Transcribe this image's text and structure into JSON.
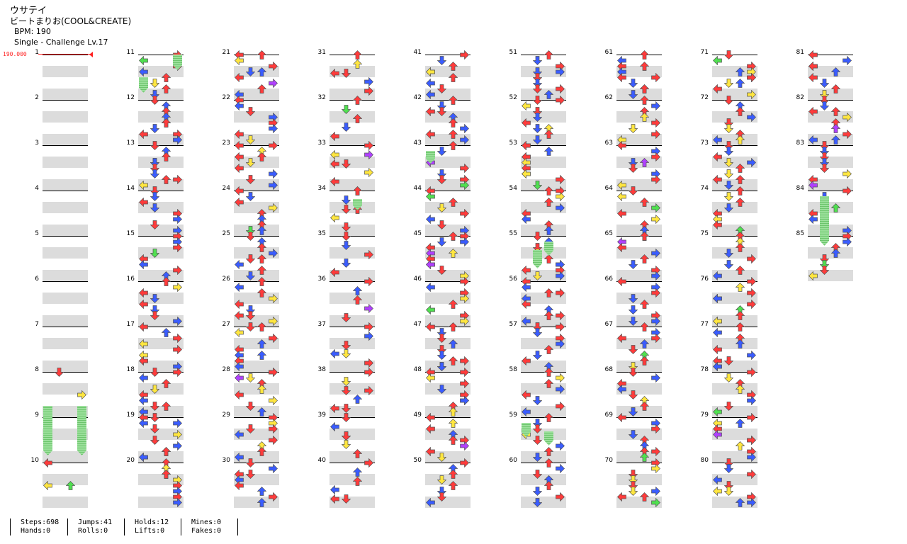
{
  "song": {
    "title": "ウサテイ",
    "artist": "ビートまりお(COOL&CREATE)",
    "bpm_text": "BPM: 190",
    "difficulty_text": "Single - Challenge  Lv.17"
  },
  "bpm_marker": "190.000",
  "measure_numbers": [
    "1",
    "2",
    "3",
    "4",
    "5",
    "6",
    "7",
    "8",
    "9",
    "10",
    "11",
    "12",
    "13",
    "14",
    "15",
    "16",
    "17",
    "18",
    "19",
    "20",
    "21",
    "22",
    "23",
    "24",
    "25",
    "26",
    "27",
    "28",
    "29",
    "30",
    "31",
    "32",
    "33",
    "34",
    "35",
    "36",
    "37",
    "38",
    "39",
    "40",
    "41",
    "42",
    "43",
    "44",
    "45",
    "46",
    "47",
    "48",
    "49",
    "50",
    "51",
    "52",
    "53",
    "54",
    "55",
    "56",
    "57",
    "58",
    "59",
    "60",
    "61",
    "62",
    "63",
    "64",
    "65",
    "66",
    "67",
    "68",
    "69",
    "70",
    "71",
    "72",
    "73",
    "74",
    "75",
    "76",
    "77",
    "78",
    "79",
    "80",
    "81",
    "82",
    "83",
    "84",
    "85"
  ],
  "arrow_colors": {
    "quarter": "#ff3b3b",
    "eighth": "#3a5cff",
    "sixteenth": "#ffe640",
    "twelfth": "#b040ff",
    "twentyfourth": "#50e050",
    "hold_body": "#9be09b",
    "bpm_line": "#ff2020"
  },
  "stats": {
    "steps": "Steps:698",
    "hands": "Hands:0",
    "jumps": "Jumps:41",
    "rolls": "Rolls:0",
    "holds": "Holds:12",
    "lifts": "Lifts:0",
    "mines": "Mines:0",
    "fakes": "Fakes:0"
  },
  "icons": [
    "arrow-left-icon",
    "arrow-down-icon",
    "arrow-up-icon",
    "arrow-right-icon"
  ]
}
